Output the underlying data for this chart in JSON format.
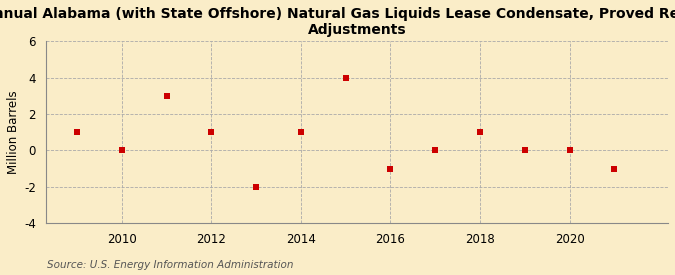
{
  "title": "Annual Alabama (with State Offshore) Natural Gas Liquids Lease Condensate, Proved Reserves\nAdjustments",
  "ylabel": "Million Barrels",
  "source": "Source: U.S. Energy Information Administration",
  "years": [
    2009,
    2010,
    2011,
    2012,
    2013,
    2014,
    2015,
    2016,
    2017,
    2018,
    2019,
    2020,
    2021
  ],
  "values": [
    1.0,
    0.0,
    3.0,
    1.0,
    -2.0,
    1.0,
    4.0,
    -1.0,
    0.0,
    1.0,
    0.0,
    0.0,
    -1.0
  ],
  "marker_color": "#cc0000",
  "marker_size": 4,
  "background_color": "#faedc8",
  "plot_bg_color": "#faedc8",
  "grid_color": "#aaaaaa",
  "ylim": [
    -4,
    6
  ],
  "yticks": [
    -4,
    -2,
    0,
    2,
    4,
    6
  ],
  "xlim": [
    2008.3,
    2022.2
  ],
  "xticks": [
    2010,
    2012,
    2014,
    2016,
    2018,
    2020
  ],
  "title_fontsize": 10,
  "axis_fontsize": 8.5,
  "source_fontsize": 7.5
}
